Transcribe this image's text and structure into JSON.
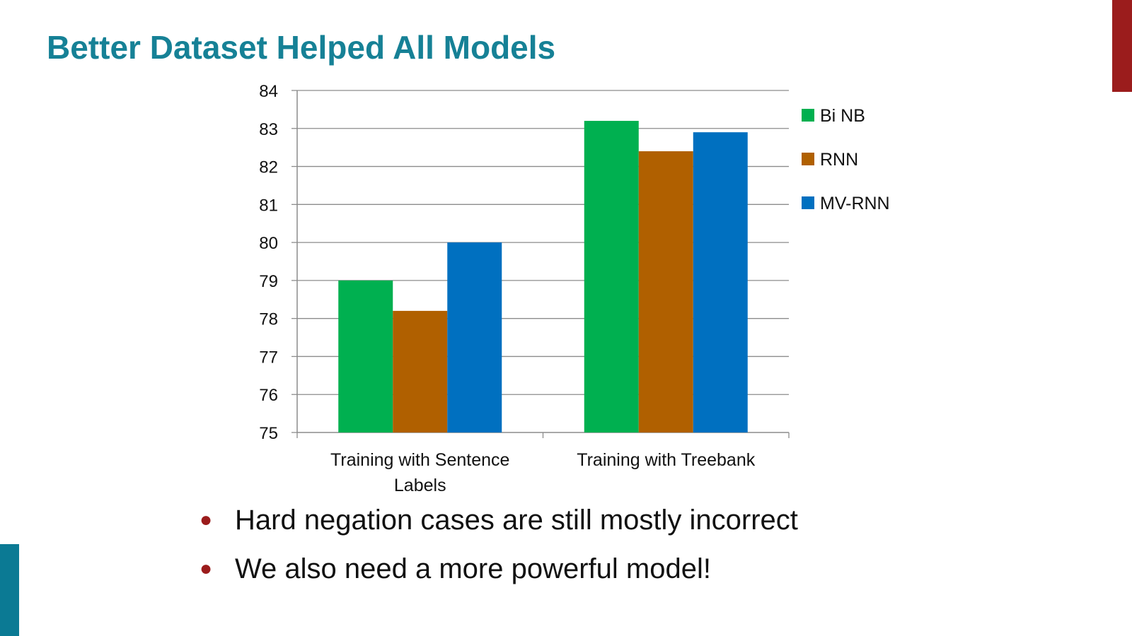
{
  "slide": {
    "title": "Better Dataset Helped All Models",
    "bullets": [
      "Hard negation cases are still mostly incorrect",
      "We also need a more powerful model!"
    ],
    "colors": {
      "title": "#168196",
      "accent_top": "#9b1c1c",
      "accent_bottom": "#0b7a94",
      "bullet": "#9b1c1c"
    }
  },
  "chart_data": {
    "type": "bar",
    "categories": [
      "Training with Sentence Labels",
      "Training with Treebank"
    ],
    "category_lines": [
      [
        "Training with Sentence",
        "Labels"
      ],
      [
        "Training with Treebank"
      ]
    ],
    "series": [
      {
        "name": "Bi NB",
        "color": "#00b050",
        "values": [
          79.0,
          83.2
        ]
      },
      {
        "name": "RNN",
        "color": "#b06000",
        "values": [
          78.2,
          82.4
        ]
      },
      {
        "name": "MV-RNN",
        "color": "#0070c0",
        "values": [
          80.0,
          82.9
        ]
      }
    ],
    "ylim": [
      75,
      84
    ],
    "yticks": [
      75,
      76,
      77,
      78,
      79,
      80,
      81,
      82,
      83,
      84
    ],
    "grid": true,
    "legend": "right",
    "title": "",
    "xlabel": "",
    "ylabel": ""
  }
}
